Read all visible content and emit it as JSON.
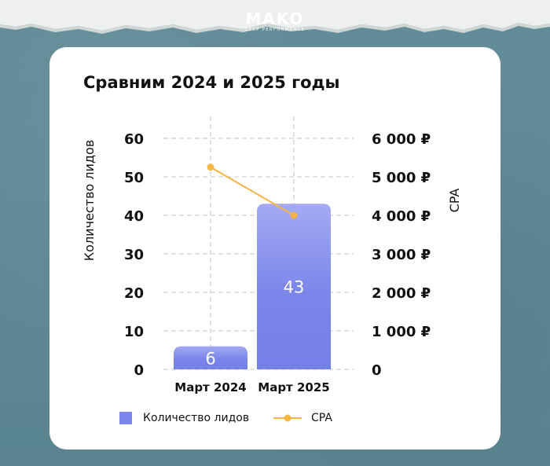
{
  "brand": {
    "name": "MAKO",
    "tagline": "DEEP PERFORMANCE"
  },
  "chart_data": {
    "type": "bar",
    "title": "Сравним 2024 и 2025 годы",
    "categories": [
      "Март 2024",
      "Март 2025"
    ],
    "ylabel": "Количество лидов",
    "y2label": "CPA",
    "ylim": [
      0,
      60
    ],
    "y2lim": [
      0,
      6000
    ],
    "yticks": [
      "0",
      "10",
      "20",
      "30",
      "40",
      "50",
      "60"
    ],
    "y2ticks": [
      "0",
      "1 000 ₽",
      "2 000 ₽",
      "3 000 ₽",
      "4 000 ₽",
      "5 000 ₽",
      "6 000 ₽"
    ],
    "grid": true,
    "legend_position": "bottom",
    "series": [
      {
        "name": "Количество лидов",
        "type": "bar",
        "axis": "left",
        "values": [
          6,
          43
        ],
        "data_labels": [
          "6",
          "43"
        ],
        "color": "#7b86ea"
      },
      {
        "name": "CPA",
        "type": "line",
        "axis": "right",
        "values": [
          5250,
          4000
        ],
        "color": "#f5b544"
      }
    ]
  }
}
